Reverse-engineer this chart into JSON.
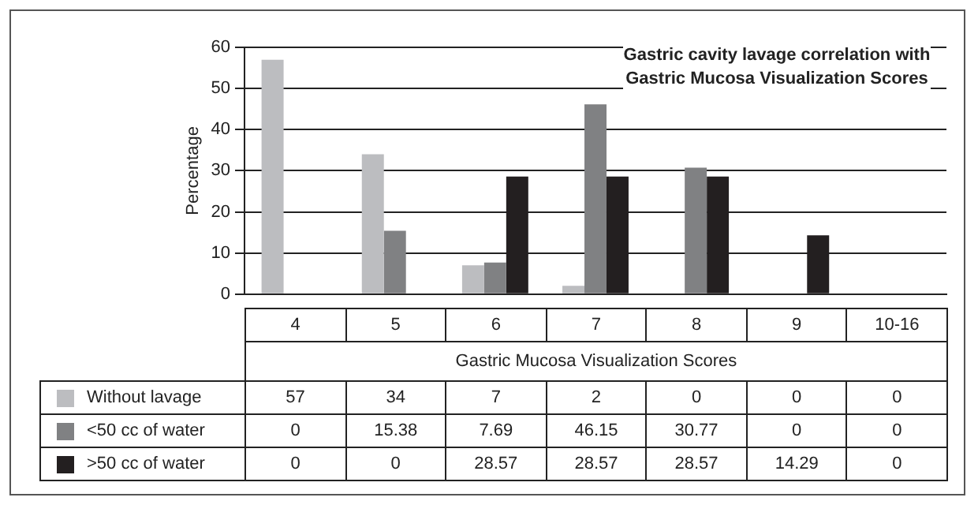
{
  "chart_data": {
    "type": "bar",
    "title": "Gastric cavity lavage correlation with Gastric Mucosa Visualization Scores",
    "xlabel": "Gastric Mucosa Visualization Scores",
    "ylabel": "Percentage",
    "categories": [
      "4",
      "5",
      "6",
      "7",
      "8",
      "9",
      "10-16"
    ],
    "series": [
      {
        "name": "Without lavage",
        "color": "#bcbdc0",
        "values": [
          57,
          34,
          7,
          2,
          0,
          0,
          0
        ]
      },
      {
        "name": "<50 cc of water",
        "color": "#808183",
        "values": [
          0,
          15.38,
          7.69,
          46.15,
          30.77,
          0,
          0
        ]
      },
      {
        "name": ">50 cc of water",
        "color": "#231f20",
        "values": [
          0,
          0,
          28.57,
          28.57,
          28.57,
          14.29,
          0
        ]
      }
    ],
    "ylim": [
      0,
      60
    ],
    "yticks": [
      0,
      10,
      20,
      30,
      40,
      50,
      60
    ],
    "grid": "y",
    "legend": "bottom",
    "data_labels": true
  }
}
